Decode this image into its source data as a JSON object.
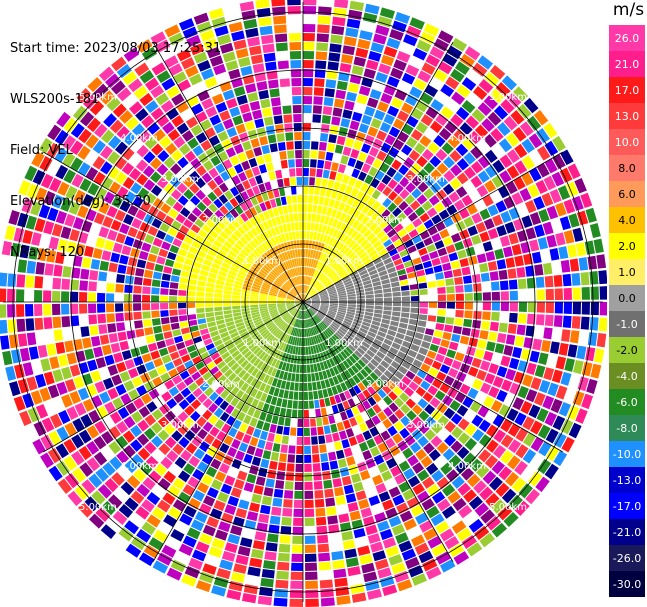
{
  "header": {
    "start_time": "Start time: 2023/08/03 17:25:31",
    "instrument": "WLS200s-181",
    "field": "Field: VEL",
    "elevation": "Elevation(deg): 35.30",
    "nrays": "NRays: 120"
  },
  "colorbar": {
    "unit": "m/s",
    "ticks": [
      "26.0",
      "21.0",
      "17.0",
      "13.0",
      "10.0",
      "8.0",
      "6.0",
      "4.0",
      "2.0",
      "1.0",
      "0.0",
      "-1.0",
      "-2.0",
      "-4.0",
      "-6.0",
      "-8.0",
      "-10.0",
      "-13.0",
      "-17.0",
      "-21.0",
      "-26.0",
      "-30.0"
    ],
    "colors": [
      "#ff3aa8",
      "#ff1e8c",
      "#ff1a1a",
      "#ff3a3a",
      "#ff5a5a",
      "#ff7a6a",
      "#ff9a5a",
      "#ffc000",
      "#ffff00",
      "#ffee66",
      "#a0a0a0",
      "#707070",
      "#9acd32",
      "#6b8e23",
      "#228b22",
      "#2e8b57",
      "#1e90ff",
      "#0000cd",
      "#0000ff",
      "#00008b",
      "#1a1a5a",
      "#000040"
    ]
  },
  "ppi": {
    "range_labels": [
      "1.00km",
      "1.00km",
      "1.00km",
      "1.00km",
      "2.00km",
      "2.00km",
      "2.00km",
      "2.00km",
      "3.00km",
      "3.00km",
      "3.00km",
      "3.00km",
      "4.00km",
      "4.00km",
      "4.00km",
      "4.00km",
      "5.00km",
      "5.00km",
      "5.00km",
      "5.00km"
    ],
    "inner_colors": {
      "near_north": "#ffa500",
      "north": "#ffff00",
      "south_west": "#9acd32",
      "south": "#228b22",
      "east": "#808080"
    },
    "noise_palette": [
      "#ff1e8c",
      "#ff3aa8",
      "#ff1a1a",
      "#ffff00",
      "#0000ff",
      "#00008b",
      "#800080",
      "#ff7a00",
      "#228b22",
      "#1e90ff",
      "#ff3a3a",
      "#c000c0",
      "#ffffff",
      "#9acd32"
    ]
  }
}
